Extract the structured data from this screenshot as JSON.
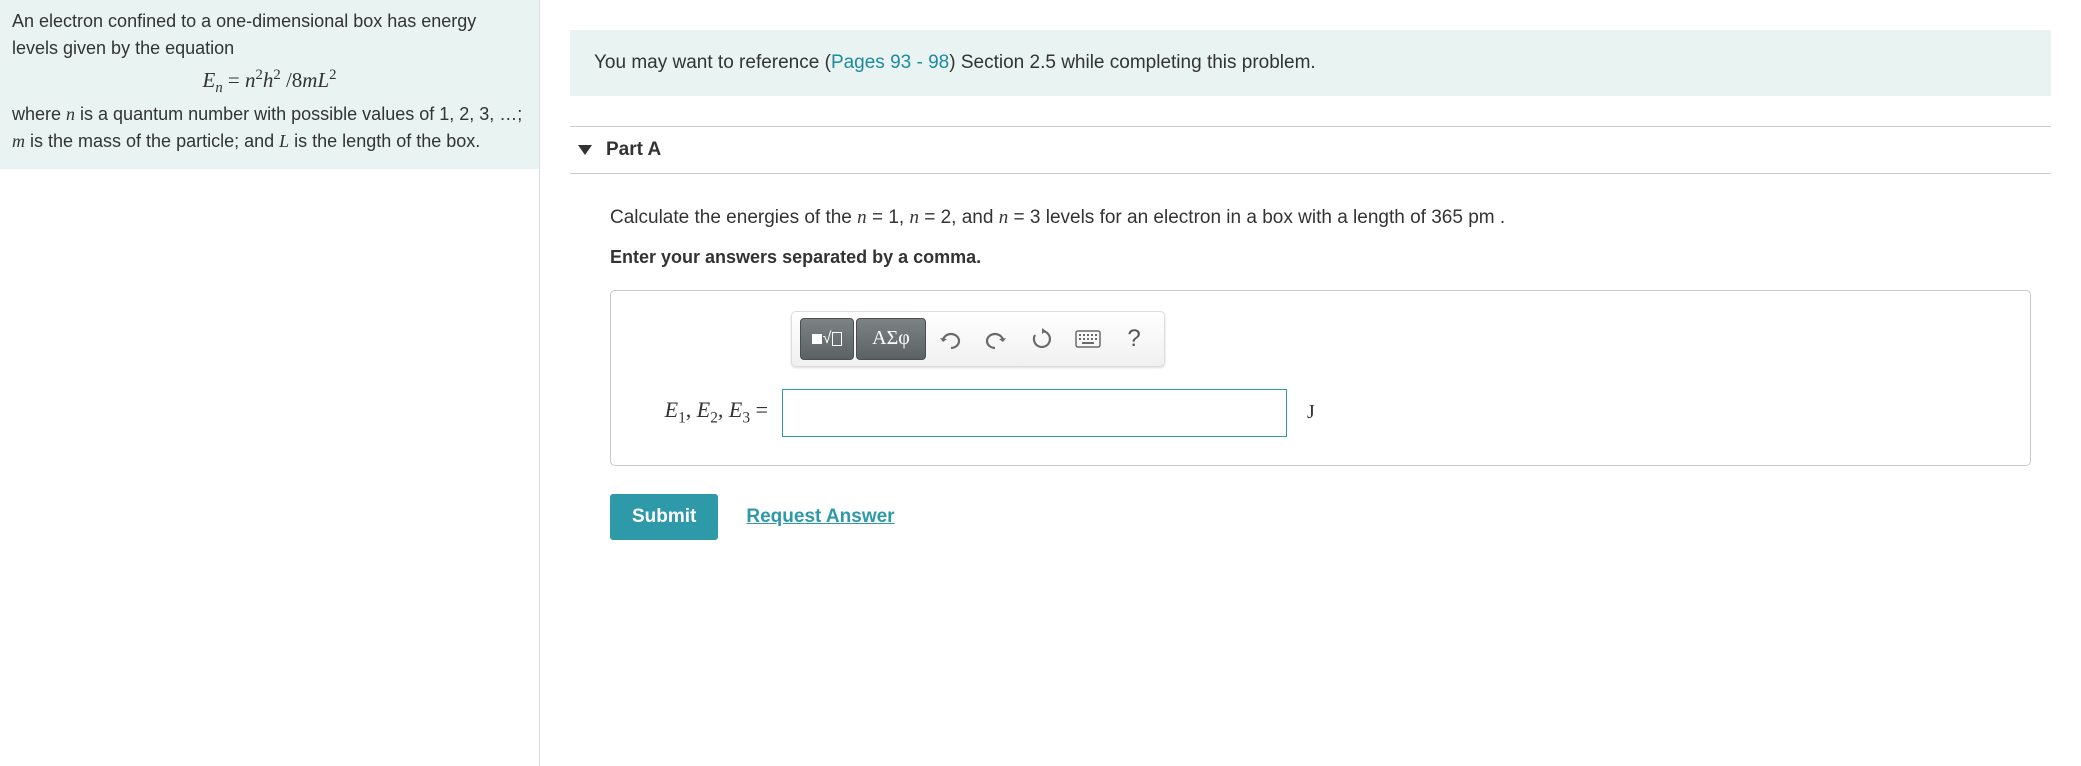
{
  "intro": {
    "line1": "An electron confined to a one-dimensional box has energy levels given by the equation",
    "equation_html": "<span class='mathit'>E<sub>n</sub></span> = <span class='mathit'>n</span><sup>2</sup><span class='mathit'>h</span><sup>2</sup> /8<span class='mathit'>mL</span><sup>2</sup>",
    "line2_html": "where <span class='mathit'>n</span> is a quantum number with possible values of 1, 2, 3, &hellip;; <span class='mathit'>m</span> is the mass of the particle; and <span class='mathit'>L</span> is the length of the box."
  },
  "reference": {
    "prefix": "You may want to reference (",
    "pages": "Pages 93 - 98",
    "suffix": ") Section 2.5 while completing this problem."
  },
  "part": {
    "title": "Part A",
    "prompt_html": "Calculate the energies of the <span class='mathit'>n</span> = 1, <span class='mathit'>n</span> = 2, and <span class='mathit'>n</span> = 3 levels for an electron in a box with a length of 365 pm .",
    "instruction": "Enter your answers separated by a comma.",
    "toolbar": {
      "templates_icon": "■√□",
      "greek_icon": "ΑΣφ",
      "undo": "↶",
      "redo": "↷",
      "reset": "↻",
      "keyboard": "⌨",
      "help": "?"
    },
    "var_label_html": "<span class='mathit'>E</span><sub>1</sub>, <span class='mathit'>E</span><sub>2</sub>, <span class='mathit'>E</span><sub>3</sub> =",
    "answer_value": "",
    "unit": "J",
    "submit_label": "Submit",
    "request_label": "Request Answer"
  },
  "colors": {
    "banner_bg": "#e8f3f2",
    "link": "#1f8a9e",
    "accent": "#2e99a9",
    "border": "#c9c9c9",
    "text": "#333333"
  }
}
